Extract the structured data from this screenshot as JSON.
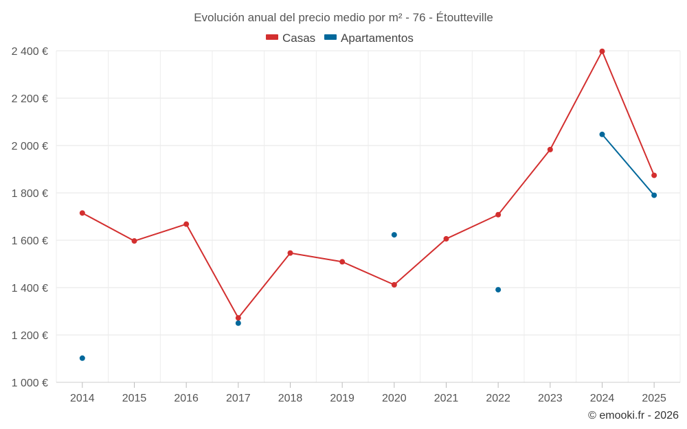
{
  "chart_data": {
    "type": "line",
    "title": "Evolución anual del precio medio por m² - 76 - Étoutteville",
    "categories": [
      "2014",
      "2015",
      "2016",
      "2017",
      "2018",
      "2019",
      "2020",
      "2021",
      "2022",
      "2023",
      "2024",
      "2025"
    ],
    "series": [
      {
        "name": "Casas",
        "color": "#d32f2f",
        "values": [
          1715,
          1597,
          1668,
          1272,
          1546,
          1509,
          1412,
          1606,
          1708,
          1983,
          2398,
          1874
        ]
      },
      {
        "name": "Apartamentos",
        "color": "#01689b",
        "values": [
          1102,
          null,
          null,
          1250,
          null,
          null,
          1623,
          null,
          1391,
          null,
          2047,
          1790
        ]
      }
    ],
    "y_ticks": [
      "1 000 €",
      "1 200 €",
      "1 400 €",
      "1 600 €",
      "1 800 €",
      "2 000 €",
      "2 200 €",
      "2 400 €"
    ],
    "y_tick_values": [
      1000,
      1200,
      1400,
      1600,
      1800,
      2000,
      2200,
      2400
    ],
    "ylim": [
      1000,
      2400
    ],
    "grid": true,
    "legend_position": "top-center",
    "xlabel": "",
    "ylabel": ""
  },
  "credit": "© emooki.fr - 2026"
}
